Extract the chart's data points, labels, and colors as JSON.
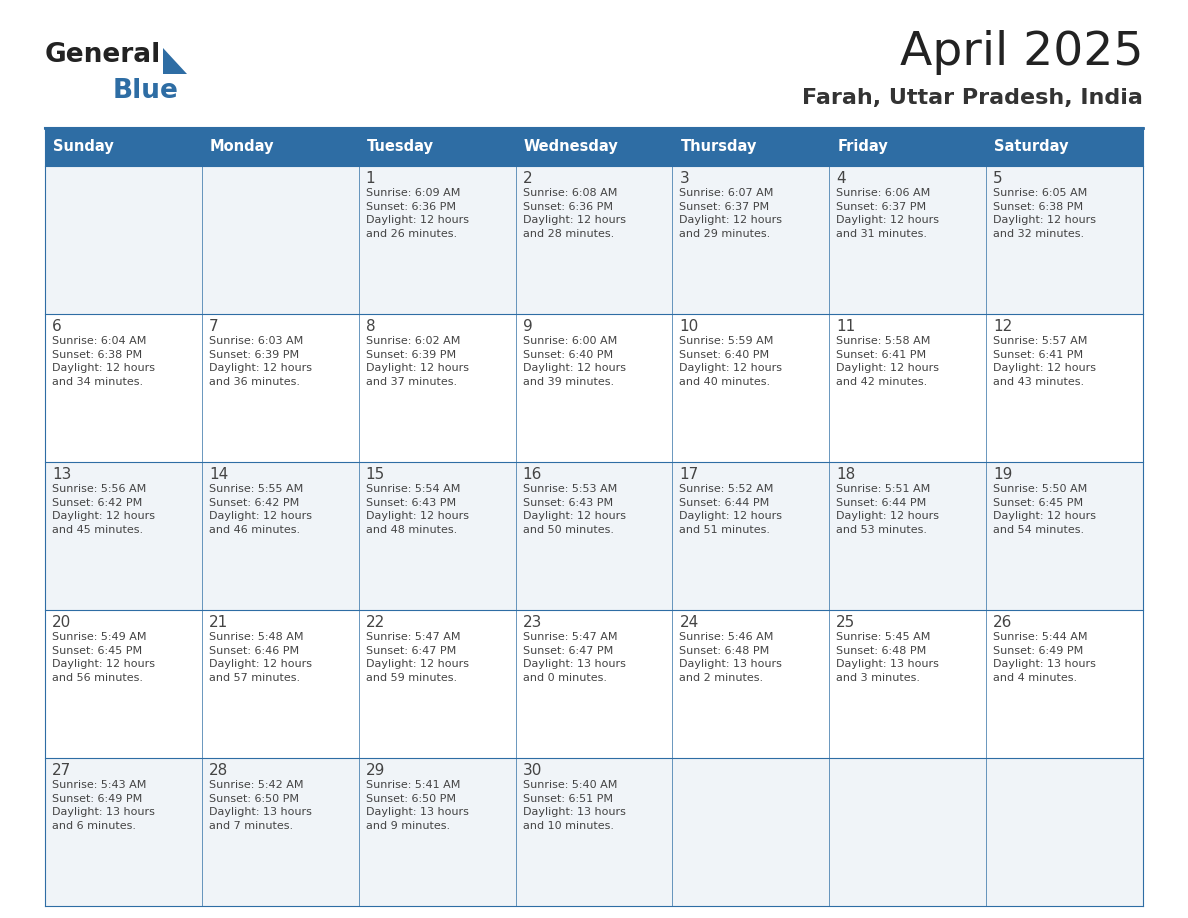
{
  "title": "April 2025",
  "subtitle": "Farah, Uttar Pradesh, India",
  "header_bg": "#2e6da4",
  "header_text_color": "#ffffff",
  "cell_bg_odd": "#f0f4f8",
  "cell_bg_even": "#ffffff",
  "border_color": "#2e6da4",
  "day_headers": [
    "Sunday",
    "Monday",
    "Tuesday",
    "Wednesday",
    "Thursday",
    "Friday",
    "Saturday"
  ],
  "weeks": [
    [
      {
        "day": "",
        "info": ""
      },
      {
        "day": "",
        "info": ""
      },
      {
        "day": "1",
        "info": "Sunrise: 6:09 AM\nSunset: 6:36 PM\nDaylight: 12 hours\nand 26 minutes."
      },
      {
        "day": "2",
        "info": "Sunrise: 6:08 AM\nSunset: 6:36 PM\nDaylight: 12 hours\nand 28 minutes."
      },
      {
        "day": "3",
        "info": "Sunrise: 6:07 AM\nSunset: 6:37 PM\nDaylight: 12 hours\nand 29 minutes."
      },
      {
        "day": "4",
        "info": "Sunrise: 6:06 AM\nSunset: 6:37 PM\nDaylight: 12 hours\nand 31 minutes."
      },
      {
        "day": "5",
        "info": "Sunrise: 6:05 AM\nSunset: 6:38 PM\nDaylight: 12 hours\nand 32 minutes."
      }
    ],
    [
      {
        "day": "6",
        "info": "Sunrise: 6:04 AM\nSunset: 6:38 PM\nDaylight: 12 hours\nand 34 minutes."
      },
      {
        "day": "7",
        "info": "Sunrise: 6:03 AM\nSunset: 6:39 PM\nDaylight: 12 hours\nand 36 minutes."
      },
      {
        "day": "8",
        "info": "Sunrise: 6:02 AM\nSunset: 6:39 PM\nDaylight: 12 hours\nand 37 minutes."
      },
      {
        "day": "9",
        "info": "Sunrise: 6:00 AM\nSunset: 6:40 PM\nDaylight: 12 hours\nand 39 minutes."
      },
      {
        "day": "10",
        "info": "Sunrise: 5:59 AM\nSunset: 6:40 PM\nDaylight: 12 hours\nand 40 minutes."
      },
      {
        "day": "11",
        "info": "Sunrise: 5:58 AM\nSunset: 6:41 PM\nDaylight: 12 hours\nand 42 minutes."
      },
      {
        "day": "12",
        "info": "Sunrise: 5:57 AM\nSunset: 6:41 PM\nDaylight: 12 hours\nand 43 minutes."
      }
    ],
    [
      {
        "day": "13",
        "info": "Sunrise: 5:56 AM\nSunset: 6:42 PM\nDaylight: 12 hours\nand 45 minutes."
      },
      {
        "day": "14",
        "info": "Sunrise: 5:55 AM\nSunset: 6:42 PM\nDaylight: 12 hours\nand 46 minutes."
      },
      {
        "day": "15",
        "info": "Sunrise: 5:54 AM\nSunset: 6:43 PM\nDaylight: 12 hours\nand 48 minutes."
      },
      {
        "day": "16",
        "info": "Sunrise: 5:53 AM\nSunset: 6:43 PM\nDaylight: 12 hours\nand 50 minutes."
      },
      {
        "day": "17",
        "info": "Sunrise: 5:52 AM\nSunset: 6:44 PM\nDaylight: 12 hours\nand 51 minutes."
      },
      {
        "day": "18",
        "info": "Sunrise: 5:51 AM\nSunset: 6:44 PM\nDaylight: 12 hours\nand 53 minutes."
      },
      {
        "day": "19",
        "info": "Sunrise: 5:50 AM\nSunset: 6:45 PM\nDaylight: 12 hours\nand 54 minutes."
      }
    ],
    [
      {
        "day": "20",
        "info": "Sunrise: 5:49 AM\nSunset: 6:45 PM\nDaylight: 12 hours\nand 56 minutes."
      },
      {
        "day": "21",
        "info": "Sunrise: 5:48 AM\nSunset: 6:46 PM\nDaylight: 12 hours\nand 57 minutes."
      },
      {
        "day": "22",
        "info": "Sunrise: 5:47 AM\nSunset: 6:47 PM\nDaylight: 12 hours\nand 59 minutes."
      },
      {
        "day": "23",
        "info": "Sunrise: 5:47 AM\nSunset: 6:47 PM\nDaylight: 13 hours\nand 0 minutes."
      },
      {
        "day": "24",
        "info": "Sunrise: 5:46 AM\nSunset: 6:48 PM\nDaylight: 13 hours\nand 2 minutes."
      },
      {
        "day": "25",
        "info": "Sunrise: 5:45 AM\nSunset: 6:48 PM\nDaylight: 13 hours\nand 3 minutes."
      },
      {
        "day": "26",
        "info": "Sunrise: 5:44 AM\nSunset: 6:49 PM\nDaylight: 13 hours\nand 4 minutes."
      }
    ],
    [
      {
        "day": "27",
        "info": "Sunrise: 5:43 AM\nSunset: 6:49 PM\nDaylight: 13 hours\nand 6 minutes."
      },
      {
        "day": "28",
        "info": "Sunrise: 5:42 AM\nSunset: 6:50 PM\nDaylight: 13 hours\nand 7 minutes."
      },
      {
        "day": "29",
        "info": "Sunrise: 5:41 AM\nSunset: 6:50 PM\nDaylight: 13 hours\nand 9 minutes."
      },
      {
        "day": "30",
        "info": "Sunrise: 5:40 AM\nSunset: 6:51 PM\nDaylight: 13 hours\nand 10 minutes."
      },
      {
        "day": "",
        "info": ""
      },
      {
        "day": "",
        "info": ""
      },
      {
        "day": "",
        "info": ""
      }
    ]
  ],
  "logo_general_color": "#222222",
  "logo_blue_color": "#2e6da4",
  "text_color": "#444444",
  "cell_text_size": 8.0,
  "day_num_size": 11,
  "header_fontsize": 10.5,
  "title_fontsize": 34,
  "subtitle_fontsize": 16
}
